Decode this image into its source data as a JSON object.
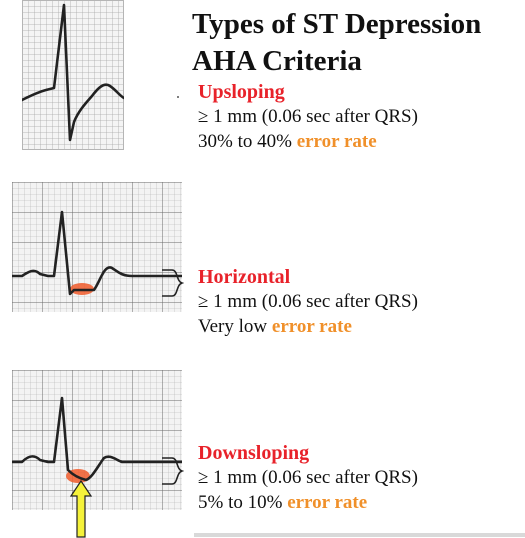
{
  "title_line1": "Types of ST Depression",
  "title_line2": "AHA Criteria",
  "colors": {
    "label_red": "#e8222a",
    "highlight_orange": "#f0902a",
    "ecg_trace": "#222222",
    "grid_minor": "#9a9a9a",
    "depression_marker": "#f05a2a",
    "arrow_yellow": "#f5f23a"
  },
  "types": [
    {
      "label": "Upsloping",
      "criterion": "≥ 1 mm (0.06 sec after QRS)",
      "rate_prefix": "30% to 40% ",
      "rate_highlight": "error rate"
    },
    {
      "label": "Horizontal",
      "criterion": "≥ 1 mm (0.06 sec after QRS)",
      "rate_prefix": "Very low ",
      "rate_highlight": "error rate"
    },
    {
      "label": "Downsloping",
      "criterion": "≥ 1 mm (0.06 sec after QRS)",
      "rate_prefix": "5% to 10% ",
      "rate_highlight": "error rate"
    }
  ]
}
